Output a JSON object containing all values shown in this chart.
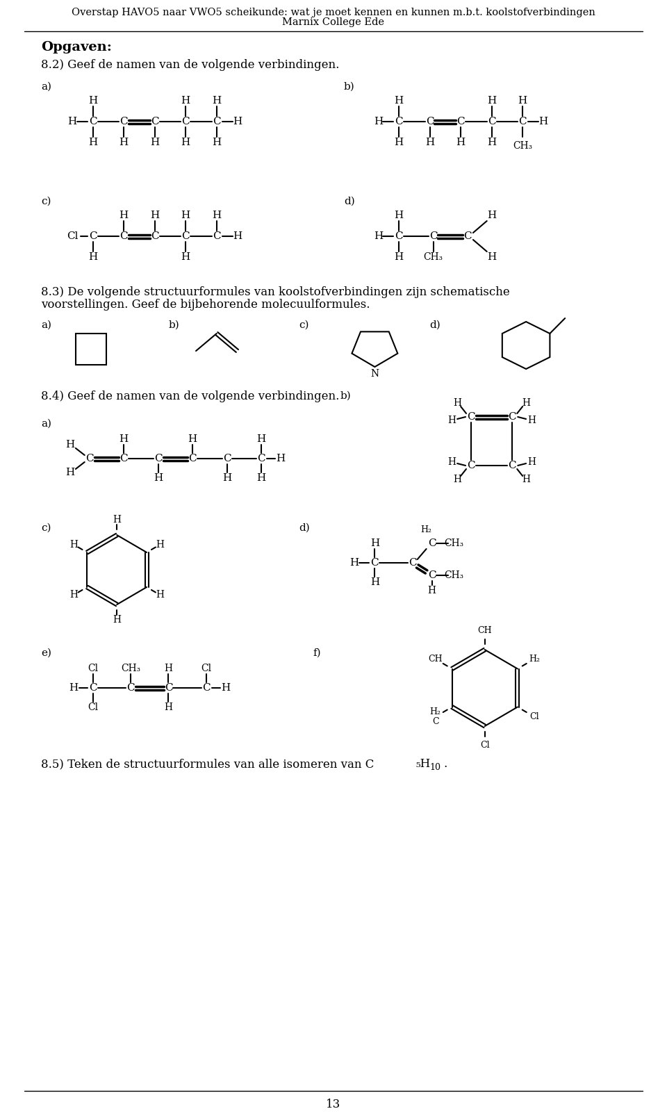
{
  "title_line1": "Overstap HAVO5 naar VWO5 scheikunde: wat je moet kennen en kunnen m.b.t. koolstofverbindingen",
  "title_line2": "Marnix College Ede",
  "bg_color": "#ffffff",
  "text_color": "#000000",
  "page_number": "13"
}
